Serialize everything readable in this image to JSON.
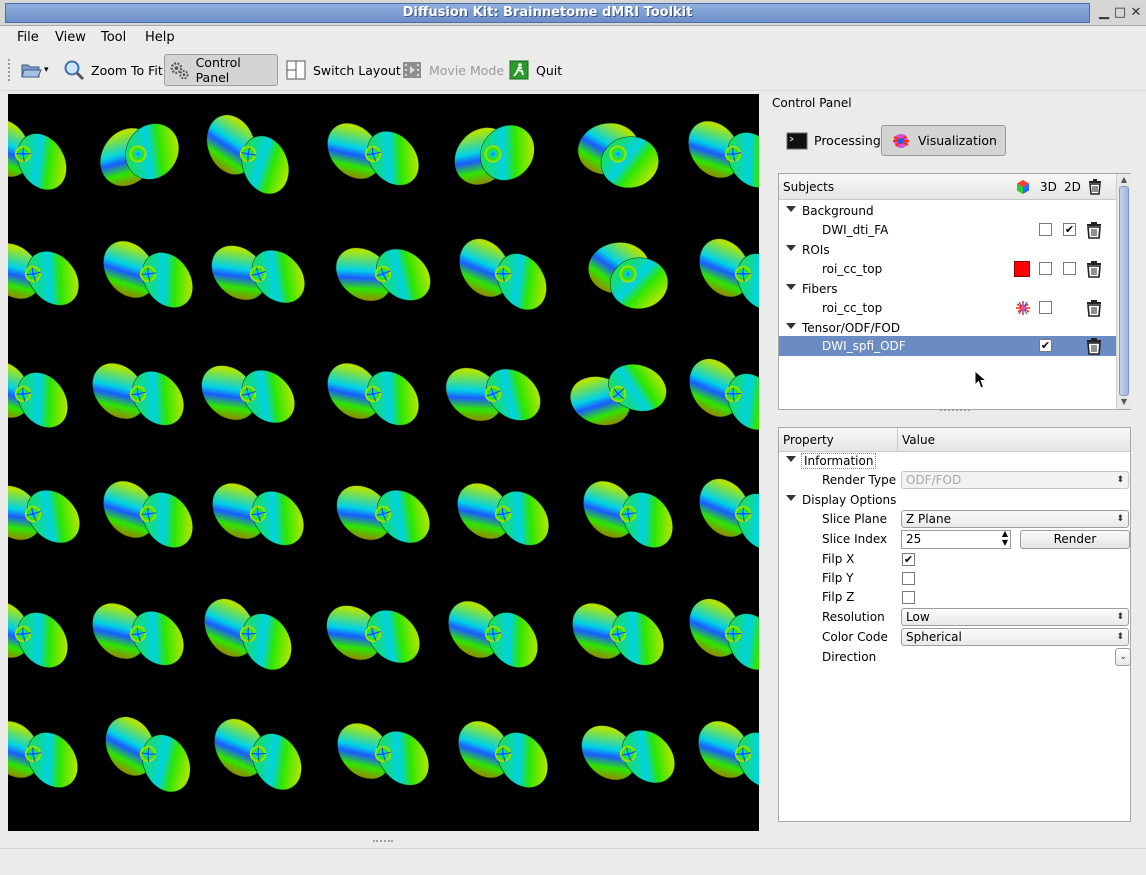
{
  "window": {
    "title": "Diffusion Kit: Brainnetome dMRI Toolkit"
  },
  "menu": {
    "items": [
      "File",
      "View",
      "Tool",
      "Help"
    ]
  },
  "toolbar": {
    "open_icon": "folder-open-icon",
    "zoom_label": "Zoom To Fit",
    "control_label": "Control Panel",
    "switch_label": "Switch Layout",
    "movie_label": "Movie Mode",
    "quit_label": "Quit"
  },
  "control_panel": {
    "title": "Control Panel",
    "tabs": {
      "processing": "Processing",
      "visualization": "Visualization"
    }
  },
  "subjects": {
    "header": {
      "subjects": "Subjects",
      "col3d": "3D",
      "col2d": "2D"
    },
    "groups": {
      "background": "Background",
      "bg_item": "DWI_dti_FA",
      "rois": "ROIs",
      "roi_item": "roi_cc_top",
      "fibers": "Fibers",
      "fiber_item": "roi_cc_top",
      "tensor": "Tensor/ODF/FOD",
      "tensor_item": "DWI_spfi_ODF"
    },
    "roi_color": "#ff0000",
    "selection_color": "#6b8cc2"
  },
  "properties": {
    "header": {
      "property": "Property",
      "value": "Value"
    },
    "information": "Information",
    "render_type_label": "Render Type",
    "render_type_value": "ODF/FOD",
    "display_options": "Display Options",
    "slice_plane_label": "Slice Plane",
    "slice_plane_value": "Z Plane",
    "slice_index_label": "Slice Index",
    "slice_index_value": "25",
    "render_button": "Render",
    "flip_x_label": "Filp X",
    "flip_y_label": "Filp Y",
    "flip_z_label": "Filp Z",
    "resolution_label": "Resolution",
    "resolution_value": "Low",
    "color_code_label": "Color Code",
    "color_code_value": "Spherical",
    "direction_label": "Direction"
  },
  "colors": {
    "odf_red": "#ff2a00",
    "odf_green": "#2ee600",
    "odf_blue": "#1a5cff",
    "odf_cyan": "#00d2e6"
  }
}
